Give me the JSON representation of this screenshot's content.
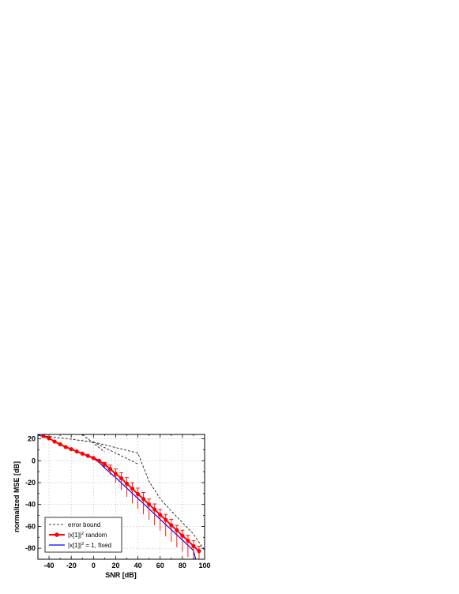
{
  "chart_data": {
    "type": "line",
    "xlabel": "SNR [dB]",
    "ylabel": "normalized MSE [dB]",
    "xlim": [
      -50,
      100
    ],
    "ylim": [
      -90,
      24
    ],
    "x_ticks": [
      -40,
      -20,
      0,
      20,
      40,
      60,
      80,
      100
    ],
    "y_ticks": [
      20,
      0,
      -20,
      -40,
      -60,
      -80
    ],
    "grid": true,
    "legend_placement": "bottom-left",
    "legend": [
      {
        "key": "bound",
        "text": "error bound"
      },
      {
        "key": "random",
        "pre": "|x[1]|",
        "sup": "2",
        "post": " random"
      },
      {
        "key": "fixed",
        "pre": "|x[1]|",
        "sup": "2",
        "post": " = 1, fixed"
      }
    ],
    "series": [
      {
        "key": "random",
        "color": "#ff0000",
        "style": "solid-with-markers",
        "x": [
          -45,
          -40,
          -35,
          -30,
          -25,
          -20,
          -15,
          -10,
          -5,
          0,
          5,
          10,
          15,
          20,
          25,
          30,
          35,
          40,
          45,
          50,
          55,
          60,
          65,
          70,
          75,
          80,
          85,
          90,
          95
        ],
        "y": [
          22.5,
          20.5,
          17.5,
          15,
          12.5,
          10.5,
          8.5,
          6.5,
          4.5,
          2.5,
          0,
          -3.5,
          -7.5,
          -12,
          -16,
          -21,
          -25.5,
          -30.5,
          -35,
          -40,
          -44.5,
          -49.5,
          -54,
          -59,
          -63.5,
          -68.5,
          -73,
          -78,
          -82.5
        ],
        "error_upper": [
          22.5,
          20.5,
          17.5,
          15,
          12.5,
          10.5,
          8.5,
          6.5,
          4.5,
          2.5,
          0,
          -1.5,
          -4,
          -7.5,
          -11,
          -15.5,
          -20,
          -25,
          -29,
          -35,
          -39.5,
          -44.5,
          -49,
          -53.5,
          -59,
          -63.5,
          -68,
          -73,
          -78
        ],
        "error_lower": [
          22.5,
          20.5,
          17.5,
          15,
          12.5,
          10.5,
          8.5,
          6.5,
          4.5,
          2.5,
          -0.5,
          -6,
          -13,
          -20,
          -27,
          -33,
          -39,
          -44,
          -49,
          -54,
          -59,
          -64,
          -69,
          -74,
          -79,
          -83,
          -88,
          -90,
          -90
        ]
      },
      {
        "key": "fixed",
        "color": "#0000ff",
        "style": "solid",
        "x": [
          -50,
          -40,
          -30,
          -20,
          -10,
          0,
          5,
          10,
          20,
          30,
          40,
          50,
          60,
          70,
          80,
          90,
          92
        ],
        "y": [
          23.5,
          20.5,
          15,
          10.5,
          6.5,
          2,
          -1.5,
          -6.5,
          -15.5,
          -25,
          -34.5,
          -44,
          -53.5,
          -63,
          -72.5,
          -82,
          -90
        ]
      },
      {
        "key": "bound",
        "color": "#000000",
        "style": "dashed",
        "segments": [
          {
            "x": [
              -50,
              0,
              40
            ],
            "y": [
              23.5,
              17,
              -3
            ]
          },
          {
            "x": [
              -10,
              10
            ],
            "y": [
              24,
              8
            ]
          },
          {
            "x": [
              0,
              40,
              50,
              60,
              70,
              80,
              90,
              100
            ],
            "y": [
              17,
              7,
              -19,
              -34.5,
              -46,
              -56.5,
              -67,
              -82
            ]
          }
        ]
      }
    ]
  }
}
